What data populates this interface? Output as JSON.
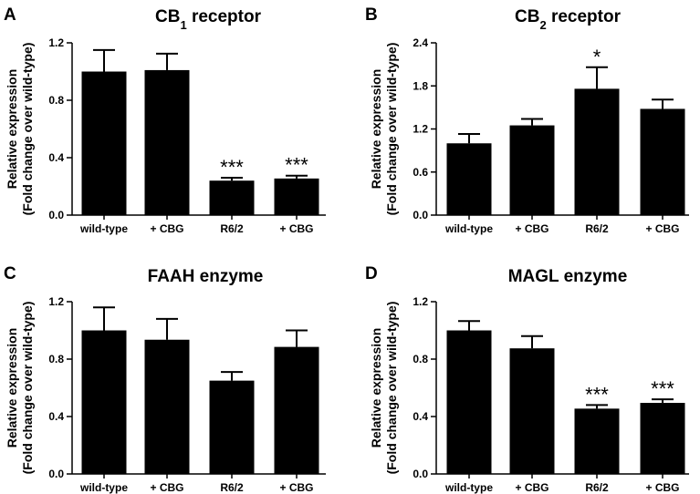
{
  "chart_data": [
    {
      "type": "bar",
      "panel": "A",
      "title": "CB",
      "title_sub": "1",
      "title_rest": " receptor",
      "ylabel_lines": [
        "Relative expression",
        "(Fold change over wild-type)"
      ],
      "categories": [
        "wild-type",
        "+ CBG",
        "R6/2",
        "+ CBG"
      ],
      "values": [
        1.0,
        1.01,
        0.24,
        0.255
      ],
      "errors": [
        0.15,
        0.115,
        0.02,
        0.02
      ],
      "significance": [
        "",
        "",
        "***",
        "***"
      ],
      "ylim": [
        0,
        1.2
      ],
      "yticks": [
        "0.0",
        "0.4",
        "0.8",
        "1.2"
      ],
      "ytick_values": [
        0,
        0.4,
        0.8,
        1.2
      ],
      "grid": false,
      "bar_color": "#000000"
    },
    {
      "type": "bar",
      "panel": "B",
      "title": "CB",
      "title_sub": "2",
      "title_rest": " receptor",
      "ylabel_lines": [
        "Relative expression",
        "(Fold change over wild-type)"
      ],
      "categories": [
        "wild-type",
        "+ CBG",
        "R6/2",
        "+ CBG"
      ],
      "values": [
        1.0,
        1.25,
        1.76,
        1.48
      ],
      "errors": [
        0.13,
        0.09,
        0.3,
        0.13
      ],
      "significance": [
        "",
        "",
        "*",
        ""
      ],
      "ylim": [
        0,
        2.4
      ],
      "yticks": [
        "0.0",
        "0.6",
        "1.2",
        "1.8",
        "2.4"
      ],
      "ytick_values": [
        0,
        0.6,
        1.2,
        1.8,
        2.4
      ],
      "grid": false,
      "bar_color": "#000000"
    },
    {
      "type": "bar",
      "panel": "C",
      "title": "FAAH enzyme",
      "title_sub": "",
      "title_rest": "",
      "ylabel_lines": [
        "Relative expression",
        "(Fold change over wild-type)"
      ],
      "categories": [
        "wild-type",
        "+ CBG",
        "R6/2",
        "+ CBG"
      ],
      "values": [
        1.0,
        0.935,
        0.65,
        0.885
      ],
      "errors": [
        0.16,
        0.145,
        0.06,
        0.115
      ],
      "significance": [
        "",
        "",
        "",
        ""
      ],
      "ylim": [
        0,
        1.2
      ],
      "yticks": [
        "0.0",
        "0.4",
        "0.8",
        "1.2"
      ],
      "ytick_values": [
        0,
        0.4,
        0.8,
        1.2
      ],
      "grid": false,
      "bar_color": "#000000"
    },
    {
      "type": "bar",
      "panel": "D",
      "title": "MAGL enzyme",
      "title_sub": "",
      "title_rest": "",
      "ylabel_lines": [
        "Relative expression",
        "(Fold change over wild-type)"
      ],
      "categories": [
        "wild-type",
        "+ CBG",
        "R6/2",
        "+ CBG"
      ],
      "values": [
        1.0,
        0.875,
        0.455,
        0.495
      ],
      "errors": [
        0.065,
        0.085,
        0.025,
        0.025
      ],
      "significance": [
        "",
        "",
        "***",
        "***"
      ],
      "ylim": [
        0,
        1.2
      ],
      "yticks": [
        "0.0",
        "0.4",
        "0.8",
        "1.2"
      ],
      "ytick_values": [
        0,
        0.4,
        0.8,
        1.2
      ],
      "grid": false,
      "bar_color": "#000000"
    }
  ]
}
